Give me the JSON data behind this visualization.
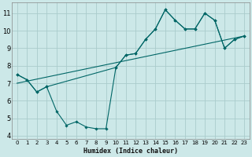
{
  "xlabel": "Humidex (Indice chaleur)",
  "bg_color": "#cce8e8",
  "grid_color": "#aacccc",
  "line_color": "#006666",
  "xlim": [
    -0.5,
    23.5
  ],
  "ylim": [
    3.8,
    11.6
  ],
  "yticks": [
    4,
    5,
    6,
    7,
    8,
    9,
    10,
    11
  ],
  "xticks": [
    0,
    1,
    2,
    3,
    4,
    5,
    6,
    7,
    8,
    9,
    10,
    11,
    12,
    13,
    14,
    15,
    16,
    17,
    18,
    19,
    20,
    21,
    22,
    23
  ],
  "series1_x": [
    0,
    1,
    2,
    3,
    4,
    5,
    6,
    7,
    8,
    9,
    10,
    11,
    12,
    13,
    14,
    15,
    16,
    17,
    18,
    19,
    20,
    21,
    22,
    23
  ],
  "series1_y": [
    7.5,
    7.2,
    6.5,
    6.8,
    5.4,
    4.6,
    4.8,
    4.5,
    4.4,
    4.4,
    7.9,
    8.6,
    8.7,
    9.5,
    10.1,
    11.2,
    10.6,
    10.1,
    10.1,
    11.0,
    10.6,
    9.0,
    9.5,
    9.7
  ],
  "series2_x": [
    0,
    1,
    2,
    3,
    10,
    11,
    12,
    13,
    14,
    15,
    16,
    17,
    18,
    19,
    20,
    21,
    22,
    23
  ],
  "series2_y": [
    7.5,
    7.2,
    6.5,
    6.8,
    7.9,
    8.6,
    8.7,
    9.5,
    10.1,
    11.2,
    10.6,
    10.1,
    10.1,
    11.0,
    10.6,
    9.0,
    9.5,
    9.7
  ],
  "series3_x": [
    0,
    23
  ],
  "series3_y": [
    7.0,
    9.7
  ]
}
